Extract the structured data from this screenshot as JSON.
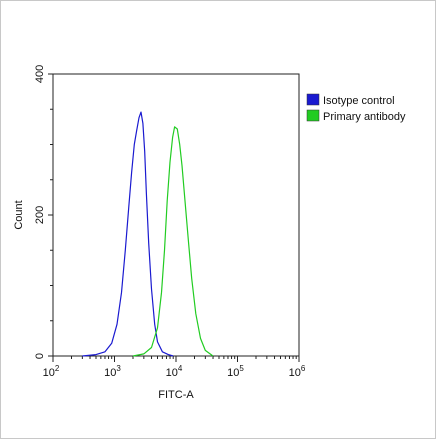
{
  "chart_data": {
    "type": "histogram",
    "xlabel": "FITC-A",
    "ylabel": "Count",
    "x_scale": "log",
    "xlim": [
      100,
      1000000
    ],
    "ylim": [
      0,
      400
    ],
    "y_ticks": [
      0,
      200,
      400
    ],
    "x_ticks": [
      {
        "value": 100,
        "base": "10",
        "exp": "2"
      },
      {
        "value": 1000,
        "base": "10",
        "exp": "3"
      },
      {
        "value": 10000,
        "base": "10",
        "exp": "4"
      },
      {
        "value": 100000,
        "base": "10",
        "exp": "5"
      },
      {
        "value": 1000000,
        "base": "10",
        "exp": "6"
      }
    ],
    "legend_position": "top-right",
    "series": [
      {
        "name": "Isotype control",
        "color": "#1a1ad0",
        "points": [
          [
            300,
            0
          ],
          [
            500,
            2
          ],
          [
            700,
            6
          ],
          [
            900,
            18
          ],
          [
            1100,
            45
          ],
          [
            1300,
            90
          ],
          [
            1500,
            150
          ],
          [
            1700,
            210
          ],
          [
            1900,
            260
          ],
          [
            2100,
            300
          ],
          [
            2300,
            320
          ],
          [
            2500,
            338
          ],
          [
            2700,
            346
          ],
          [
            2900,
            330
          ],
          [
            3100,
            290
          ],
          [
            3300,
            230
          ],
          [
            3600,
            160
          ],
          [
            4000,
            95
          ],
          [
            4500,
            45
          ],
          [
            5000,
            20
          ],
          [
            6000,
            6
          ],
          [
            7500,
            2
          ],
          [
            9000,
            0
          ]
        ]
      },
      {
        "name": "Primary antibody",
        "color": "#22cc22",
        "points": [
          [
            2000,
            0
          ],
          [
            3000,
            3
          ],
          [
            4000,
            12
          ],
          [
            5000,
            40
          ],
          [
            5800,
            90
          ],
          [
            6500,
            150
          ],
          [
            7200,
            220
          ],
          [
            8000,
            275
          ],
          [
            8800,
            310
          ],
          [
            9500,
            325
          ],
          [
            10500,
            322
          ],
          [
            11500,
            300
          ],
          [
            12500,
            270
          ],
          [
            14000,
            220
          ],
          [
            16000,
            160
          ],
          [
            18000,
            110
          ],
          [
            21000,
            60
          ],
          [
            25000,
            25
          ],
          [
            30000,
            8
          ],
          [
            40000,
            0
          ]
        ]
      }
    ]
  }
}
